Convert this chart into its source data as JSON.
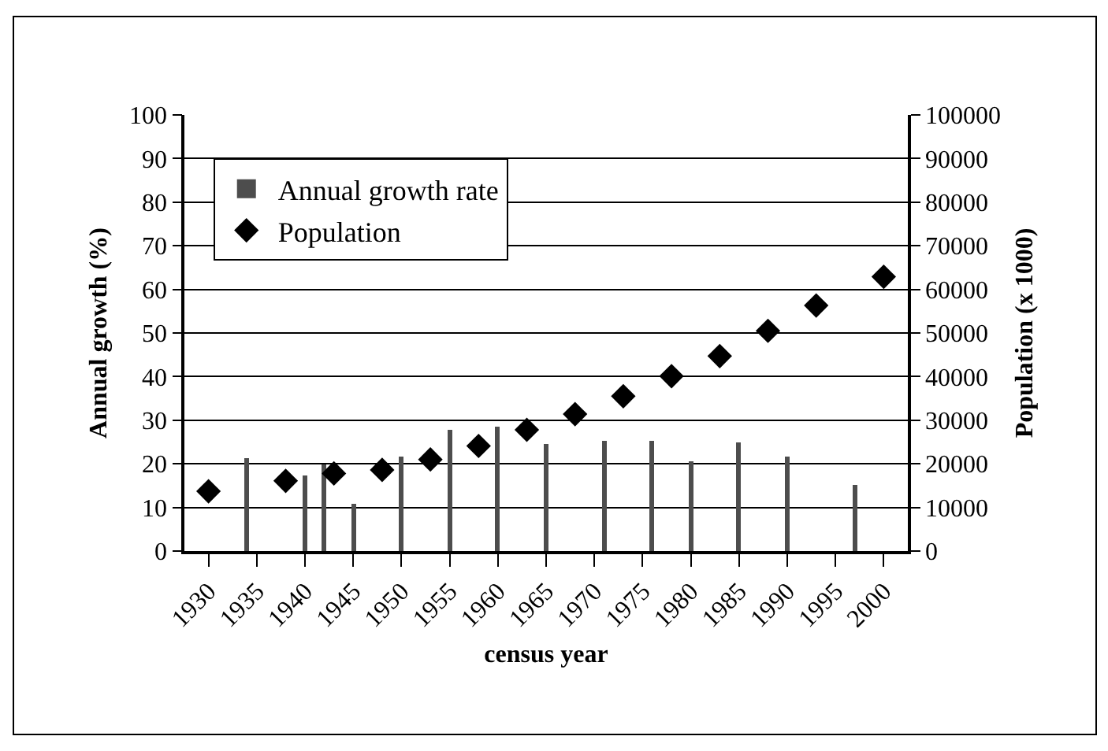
{
  "chart_data": {
    "type": "bar",
    "xlabel": "census year",
    "ylabel": "Annual growth (%)",
    "y2label": "Population (x 1000)",
    "xlim": [
      1927.5,
      2002.5
    ],
    "xticks": [
      1930,
      1935,
      1940,
      1945,
      1950,
      1955,
      1960,
      1965,
      1970,
      1975,
      1980,
      1985,
      1990,
      1995,
      2000
    ],
    "ylim": [
      0,
      100
    ],
    "yticks": [
      0,
      10,
      20,
      30,
      40,
      50,
      60,
      70,
      80,
      90,
      100
    ],
    "y2lim": [
      0,
      100000
    ],
    "y2ticks": [
      0,
      10000,
      20000,
      30000,
      40000,
      50000,
      60000,
      70000,
      80000,
      90000,
      100000
    ],
    "series": [
      {
        "name": "Annual growth rate",
        "color": "#4d4d4d",
        "x": [
          1934,
          1940,
          1942,
          1945,
          1950,
          1955,
          1960,
          1965,
          1971,
          1976,
          1980,
          1985,
          1990,
          1997
        ],
        "values": [
          21.2,
          17.3,
          20,
          10.7,
          21.6,
          27.8,
          28.6,
          24.6,
          25.2,
          25.2,
          20.6,
          24.8,
          21.6,
          15.1
        ]
      },
      {
        "name": "Population",
        "type": "scatter",
        "axis": "y2",
        "color": "#000000",
        "x": [
          1930,
          1938,
          1943,
          1948,
          1953,
          1958,
          1963,
          1968,
          1973,
          1978,
          1983,
          1988,
          1993,
          2000
        ],
        "values": [
          13700,
          16100,
          17800,
          18600,
          21000,
          24100,
          27800,
          31400,
          35500,
          40100,
          44700,
          50500,
          56300,
          62900
        ]
      }
    ],
    "marker": "diamond",
    "grid": "y",
    "legend": "top left"
  }
}
